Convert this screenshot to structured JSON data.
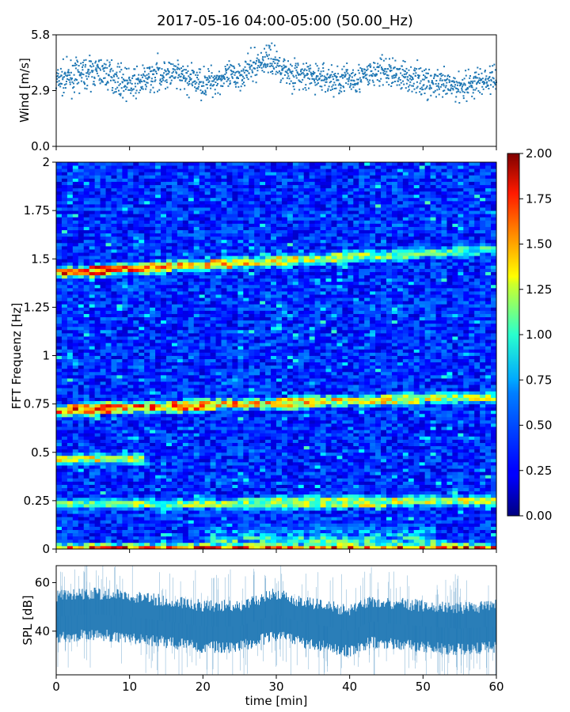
{
  "title": "2017-05-16 04:00-05:00 (50.00_Hz)",
  "chart_data": [
    {
      "panel": "wind",
      "type": "scatter",
      "ylabel": "Wind [m/s]",
      "xlim": [
        0,
        60
      ],
      "ylim": [
        0.0,
        5.8
      ],
      "yticks": [
        "0.0",
        "2.9",
        "5.8"
      ],
      "color": "#1f77b4",
      "profile": {
        "x": [
          0,
          2,
          4,
          6,
          8,
          10,
          12,
          14,
          16,
          18,
          20,
          22,
          24,
          26,
          28,
          29,
          30,
          32,
          34,
          36,
          38,
          40,
          42,
          44,
          46,
          48,
          50,
          52,
          54,
          56,
          58,
          60
        ],
        "y": [
          3.4,
          3.6,
          3.8,
          3.9,
          3.6,
          3.2,
          3.4,
          3.8,
          3.7,
          3.5,
          3.3,
          3.5,
          3.6,
          3.9,
          4.4,
          4.6,
          4.3,
          3.8,
          3.6,
          3.6,
          3.4,
          3.5,
          3.6,
          3.9,
          3.8,
          3.6,
          3.4,
          3.2,
          3.1,
          3.2,
          3.4,
          3.5
        ]
      }
    },
    {
      "panel": "spectrogram",
      "type": "heatmap",
      "ylabel": "FFT Frequenz [Hz]",
      "xlim": [
        0,
        60
      ],
      "ylim": [
        0,
        2
      ],
      "yticks": [
        "0",
        "0.25",
        "0.5",
        "0.75",
        "1",
        "1.25",
        "1.5",
        "1.75",
        "2"
      ],
      "colormap": "jet",
      "colorbar": {
        "range": [
          0.0,
          2.0
        ],
        "ticks": [
          "0.00",
          "0.25",
          "0.50",
          "0.75",
          "1.00",
          "1.25",
          "1.50",
          "1.75",
          "2.00"
        ]
      },
      "background_level": 0.3,
      "bands": [
        {
          "x": [
            0,
            60
          ],
          "freq": [
            1.43,
            1.55
          ],
          "level": [
            1.8,
            0.9
          ]
        },
        {
          "x": [
            0,
            60
          ],
          "freq": [
            0.72,
            0.79
          ],
          "level": [
            1.8,
            1.2
          ]
        },
        {
          "x": [
            0,
            12
          ],
          "freq": [
            0.47,
            0.47
          ],
          "level": [
            1.3,
            1.3
          ]
        },
        {
          "x": [
            0,
            60
          ],
          "freq": [
            0.23,
            0.25
          ],
          "level": [
            1.1,
            1.3
          ]
        },
        {
          "x": [
            0,
            60
          ],
          "freq": [
            0.0,
            0.0
          ],
          "level": [
            1.8,
            1.8
          ]
        }
      ],
      "low_freq_energy": {
        "x": [
          20,
          52
        ],
        "freq_top": 0.2,
        "level": 1.1
      }
    },
    {
      "panel": "spl",
      "type": "line",
      "ylabel": "SPL [dB]",
      "xlabel": "time [min]",
      "xlim": [
        0,
        60
      ],
      "ylim": [
        22,
        67
      ],
      "yticks": [
        "40",
        "60"
      ],
      "xticks": [
        "0",
        "10",
        "20",
        "30",
        "40",
        "50",
        "60"
      ],
      "color": "#1f77b4",
      "profile": {
        "x": [
          0,
          5,
          10,
          15,
          20,
          25,
          28,
          30,
          33,
          37,
          40,
          43,
          46,
          50,
          55,
          60
        ],
        "y": [
          46,
          47,
          46,
          44,
          42,
          42,
          45,
          47,
          44,
          42,
          40,
          44,
          43,
          42,
          41,
          42
        ]
      }
    }
  ]
}
